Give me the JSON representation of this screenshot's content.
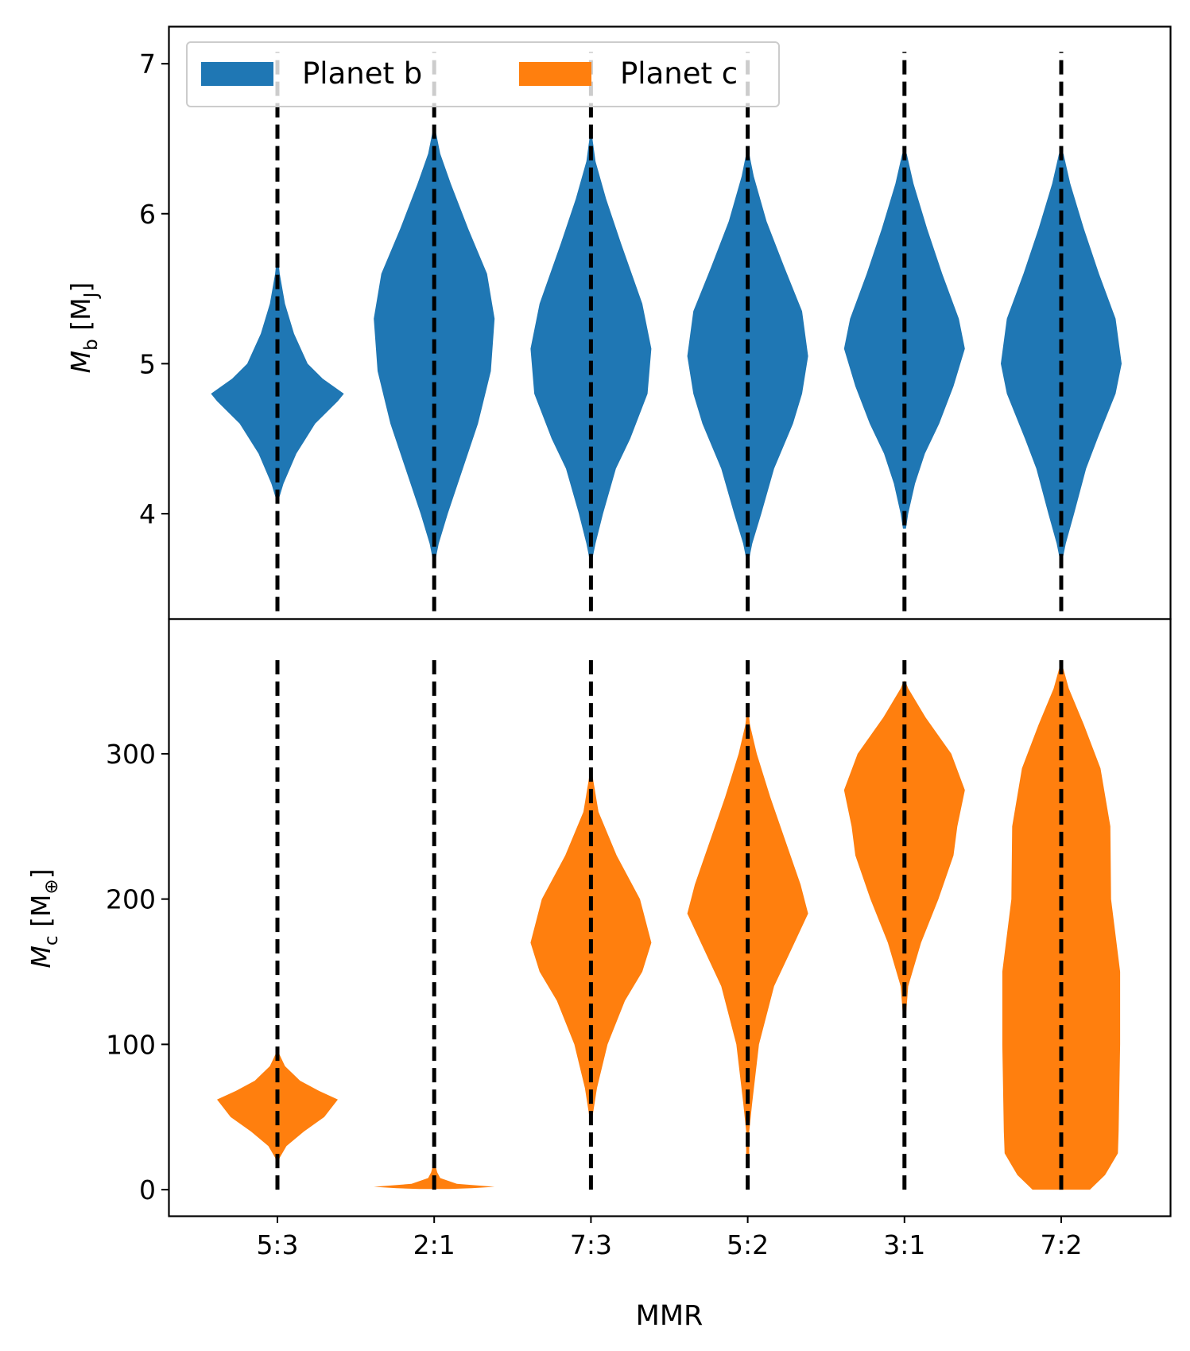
{
  "chart_data": {
    "type": "violin",
    "title": "",
    "xlabel": "MMR",
    "categories": [
      "5:3",
      "2:1",
      "7:3",
      "5:2",
      "3:1",
      "7:2"
    ],
    "legend": {
      "placement": "top-left",
      "entries": [
        {
          "label": "Planet b",
          "color": "#1f77b4"
        },
        {
          "label": "Planet c",
          "color": "#ff7f0e"
        }
      ]
    },
    "panels": [
      {
        "name": "top",
        "series": "Planet b",
        "color": "#1f77b4",
        "ylabel_main": "M",
        "ylabel_sub": "b",
        "ylabel_unit_pre": "[M",
        "ylabel_unit_sub": "J",
        "ylabel_unit_post": "]",
        "ylim": [
          3.3,
          7.25
        ],
        "yticks": [
          4,
          5,
          6,
          7
        ],
        "ytick_labels": [
          "4",
          "5",
          "6",
          "7"
        ],
        "divider_range": [
          3.35,
          7.08
        ],
        "violins": [
          {
            "category": "5:3",
            "profile": [
              [
                4.1,
                0.02
              ],
              [
                4.2,
                0.08
              ],
              [
                4.4,
                0.25
              ],
              [
                4.6,
                0.5
              ],
              [
                4.75,
                0.8
              ],
              [
                4.8,
                0.88
              ],
              [
                4.9,
                0.6
              ],
              [
                5.0,
                0.4
              ],
              [
                5.2,
                0.22
              ],
              [
                5.4,
                0.1
              ],
              [
                5.6,
                0.03
              ],
              [
                5.7,
                0.01
              ]
            ]
          },
          {
            "category": "2:1",
            "profile": [
              [
                3.7,
                0.02
              ],
              [
                3.8,
                0.06
              ],
              [
                4.0,
                0.18
              ],
              [
                4.3,
                0.38
              ],
              [
                4.6,
                0.58
              ],
              [
                4.95,
                0.75
              ],
              [
                5.3,
                0.8
              ],
              [
                5.6,
                0.7
              ],
              [
                5.9,
                0.45
              ],
              [
                6.2,
                0.22
              ],
              [
                6.4,
                0.08
              ],
              [
                6.55,
                0.02
              ]
            ]
          },
          {
            "category": "7:3",
            "profile": [
              [
                3.7,
                0.02
              ],
              [
                3.8,
                0.06
              ],
              [
                4.0,
                0.16
              ],
              [
                4.3,
                0.33
              ],
              [
                4.5,
                0.52
              ],
              [
                4.8,
                0.75
              ],
              [
                5.1,
                0.8
              ],
              [
                5.4,
                0.68
              ],
              [
                5.8,
                0.4
              ],
              [
                6.1,
                0.2
              ],
              [
                6.35,
                0.06
              ],
              [
                6.5,
                0.02
              ]
            ]
          },
          {
            "category": "5:2",
            "profile": [
              [
                3.7,
                0.02
              ],
              [
                3.8,
                0.06
              ],
              [
                4.0,
                0.18
              ],
              [
                4.3,
                0.35
              ],
              [
                4.6,
                0.6
              ],
              [
                4.8,
                0.72
              ],
              [
                5.05,
                0.8
              ],
              [
                5.35,
                0.72
              ],
              [
                5.65,
                0.48
              ],
              [
                5.95,
                0.25
              ],
              [
                6.25,
                0.08
              ],
              [
                6.4,
                0.02
              ]
            ]
          },
          {
            "category": "3:1",
            "profile": [
              [
                3.9,
                0.02
              ],
              [
                4.0,
                0.05
              ],
              [
                4.2,
                0.14
              ],
              [
                4.4,
                0.27
              ],
              [
                4.6,
                0.46
              ],
              [
                4.85,
                0.65
              ],
              [
                5.1,
                0.8
              ],
              [
                5.3,
                0.72
              ],
              [
                5.6,
                0.5
              ],
              [
                5.9,
                0.3
              ],
              [
                6.2,
                0.12
              ],
              [
                6.4,
                0.03
              ]
            ]
          },
          {
            "category": "7:2",
            "profile": [
              [
                3.7,
                0.02
              ],
              [
                3.8,
                0.06
              ],
              [
                4.0,
                0.17
              ],
              [
                4.3,
                0.33
              ],
              [
                4.5,
                0.48
              ],
              [
                4.8,
                0.72
              ],
              [
                5.0,
                0.8
              ],
              [
                5.3,
                0.72
              ],
              [
                5.6,
                0.5
              ],
              [
                5.9,
                0.3
              ],
              [
                6.2,
                0.12
              ],
              [
                6.4,
                0.03
              ]
            ]
          }
        ]
      },
      {
        "name": "bottom",
        "series": "Planet c",
        "color": "#ff7f0e",
        "ylabel_main": "M",
        "ylabel_sub": "c",
        "ylabel_unit_pre": "[M",
        "ylabel_unit_sub": "⊕",
        "ylabel_unit_post": "]",
        "ylim": [
          -18,
          393
        ],
        "yticks": [
          0,
          100,
          200,
          300
        ],
        "ytick_labels": [
          "0",
          "100",
          "200",
          "300"
        ],
        "divider_range": [
          0,
          368
        ],
        "violins": [
          {
            "category": "5:3",
            "profile": [
              [
                15,
                0.0
              ],
              [
                22,
                0.03
              ],
              [
                30,
                0.12
              ],
              [
                40,
                0.35
              ],
              [
                50,
                0.62
              ],
              [
                62,
                0.8
              ],
              [
                68,
                0.55
              ],
              [
                75,
                0.3
              ],
              [
                85,
                0.1
              ],
              [
                95,
                0.01
              ]
            ]
          },
          {
            "category": "2:1",
            "profile": [
              [
                0.5,
                0.2
              ],
              [
                1,
                0.5
              ],
              [
                2,
                0.8
              ],
              [
                4,
                0.3
              ],
              [
                8,
                0.08
              ],
              [
                12,
                0.04
              ],
              [
                18,
                0.01
              ]
            ]
          },
          {
            "category": "7:3",
            "profile": [
              [
                50,
                0.02
              ],
              [
                70,
                0.08
              ],
              [
                100,
                0.22
              ],
              [
                130,
                0.45
              ],
              [
                150,
                0.68
              ],
              [
                170,
                0.8
              ],
              [
                200,
                0.65
              ],
              [
                230,
                0.34
              ],
              [
                260,
                0.1
              ],
              [
                285,
                0.02
              ]
            ]
          },
          {
            "category": "5:2",
            "profile": [
              [
                15,
                0.02
              ],
              [
                40,
                0.02
              ],
              [
                60,
                0.06
              ],
              [
                100,
                0.15
              ],
              [
                140,
                0.35
              ],
              [
                170,
                0.62
              ],
              [
                190,
                0.8
              ],
              [
                210,
                0.7
              ],
              [
                240,
                0.5
              ],
              [
                270,
                0.3
              ],
              [
                300,
                0.12
              ],
              [
                320,
                0.03
              ],
              [
                330,
                0.01
              ]
            ]
          },
          {
            "category": "3:1",
            "profile": [
              [
                120,
                0.02
              ],
              [
                140,
                0.05
              ],
              [
                170,
                0.22
              ],
              [
                200,
                0.45
              ],
              [
                230,
                0.65
              ],
              [
                250,
                0.7
              ],
              [
                275,
                0.8
              ],
              [
                300,
                0.62
              ],
              [
                325,
                0.28
              ],
              [
                345,
                0.05
              ],
              [
                350,
                0.01
              ]
            ]
          },
          {
            "category": "7:2",
            "profile": [
              [
                0,
                0.38
              ],
              [
                10,
                0.58
              ],
              [
                25,
                0.75
              ],
              [
                40,
                0.76
              ],
              [
                100,
                0.78
              ],
              [
                150,
                0.78
              ],
              [
                200,
                0.66
              ],
              [
                250,
                0.65
              ],
              [
                290,
                0.52
              ],
              [
                320,
                0.3
              ],
              [
                345,
                0.1
              ],
              [
                360,
                0.02
              ]
            ]
          }
        ]
      }
    ]
  }
}
